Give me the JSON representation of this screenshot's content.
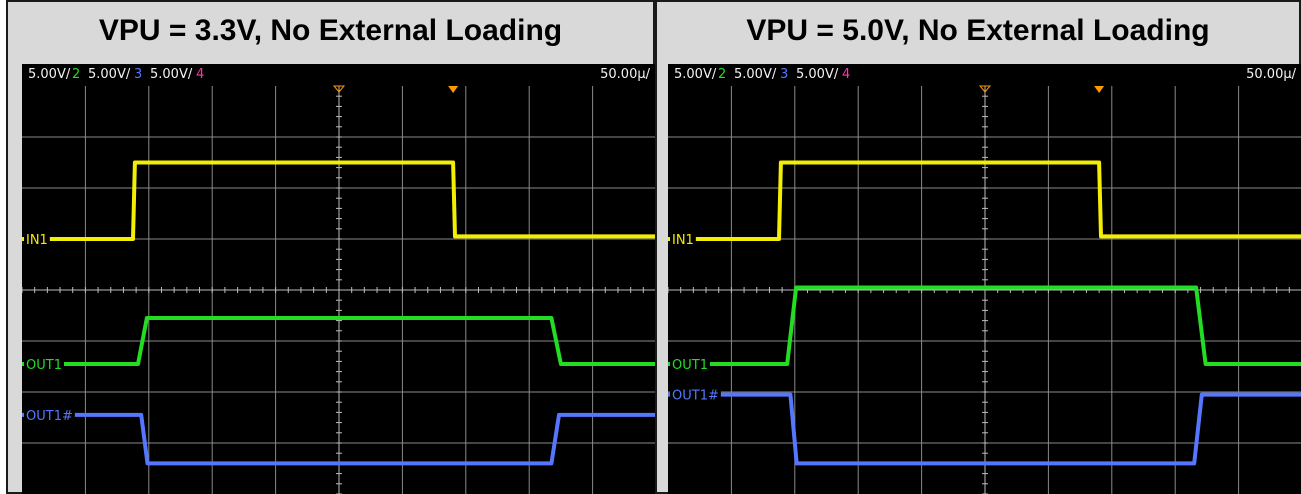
{
  "colors": {
    "ch1": "#f4ee00",
    "ch2": "#22dd22",
    "ch3": "#5577ff",
    "ch4": "#ff33aa",
    "trigger": "#ff9900",
    "grid": "#8a8a8a"
  },
  "scope_header": {
    "ch1_scale": "5.00V/",
    "ch2_num": "2",
    "ch2_scale": "5.00V/",
    "ch3_num": "3",
    "ch3_scale": "5.00V/",
    "ch4_num": "4",
    "timebase": "50.00µ/"
  },
  "trace_labels": [
    "IN1",
    "OUT1",
    "OUT1#"
  ],
  "chart_data": [
    {
      "type": "line",
      "title": "VPU = 3.3V, No External Loading",
      "x_divisions": 10,
      "y_divisions": 8,
      "series": [
        {
          "name": "IN1",
          "x": [
            0,
            1.75,
            1.78,
            6.8,
            6.83,
            10
          ],
          "y": [
            5.0,
            5.0,
            6.5,
            6.5,
            5.05,
            5.05
          ]
        },
        {
          "name": "OUT1",
          "x": [
            0,
            1.83,
            1.97,
            8.35,
            8.5,
            10
          ],
          "y": [
            2.55,
            2.55,
            3.45,
            3.45,
            2.55,
            2.55
          ]
        },
        {
          "name": "OUT1#",
          "x": [
            0,
            1.88,
            1.98,
            8.35,
            8.47,
            10
          ],
          "y": [
            1.55,
            1.55,
            0.6,
            0.6,
            1.55,
            1.55
          ]
        }
      ]
    },
    {
      "type": "line",
      "title": "VPU = 5.0V, No External Loading",
      "x_divisions": 10,
      "y_divisions": 8,
      "series": [
        {
          "name": "IN1",
          "x": [
            0,
            1.75,
            1.78,
            6.8,
            6.83,
            10
          ],
          "y": [
            5.0,
            5.0,
            6.5,
            6.5,
            5.05,
            5.05
          ]
        },
        {
          "name": "OUT1",
          "x": [
            0,
            1.88,
            2.02,
            8.33,
            8.48,
            10
          ],
          "y": [
            2.55,
            2.55,
            4.05,
            4.05,
            2.55,
            2.55
          ]
        },
        {
          "name": "OUT1#",
          "x": [
            0,
            1.93,
            2.03,
            8.3,
            8.42,
            10
          ],
          "y": [
            1.95,
            1.95,
            0.6,
            0.6,
            1.95,
            1.95
          ]
        }
      ]
    }
  ]
}
